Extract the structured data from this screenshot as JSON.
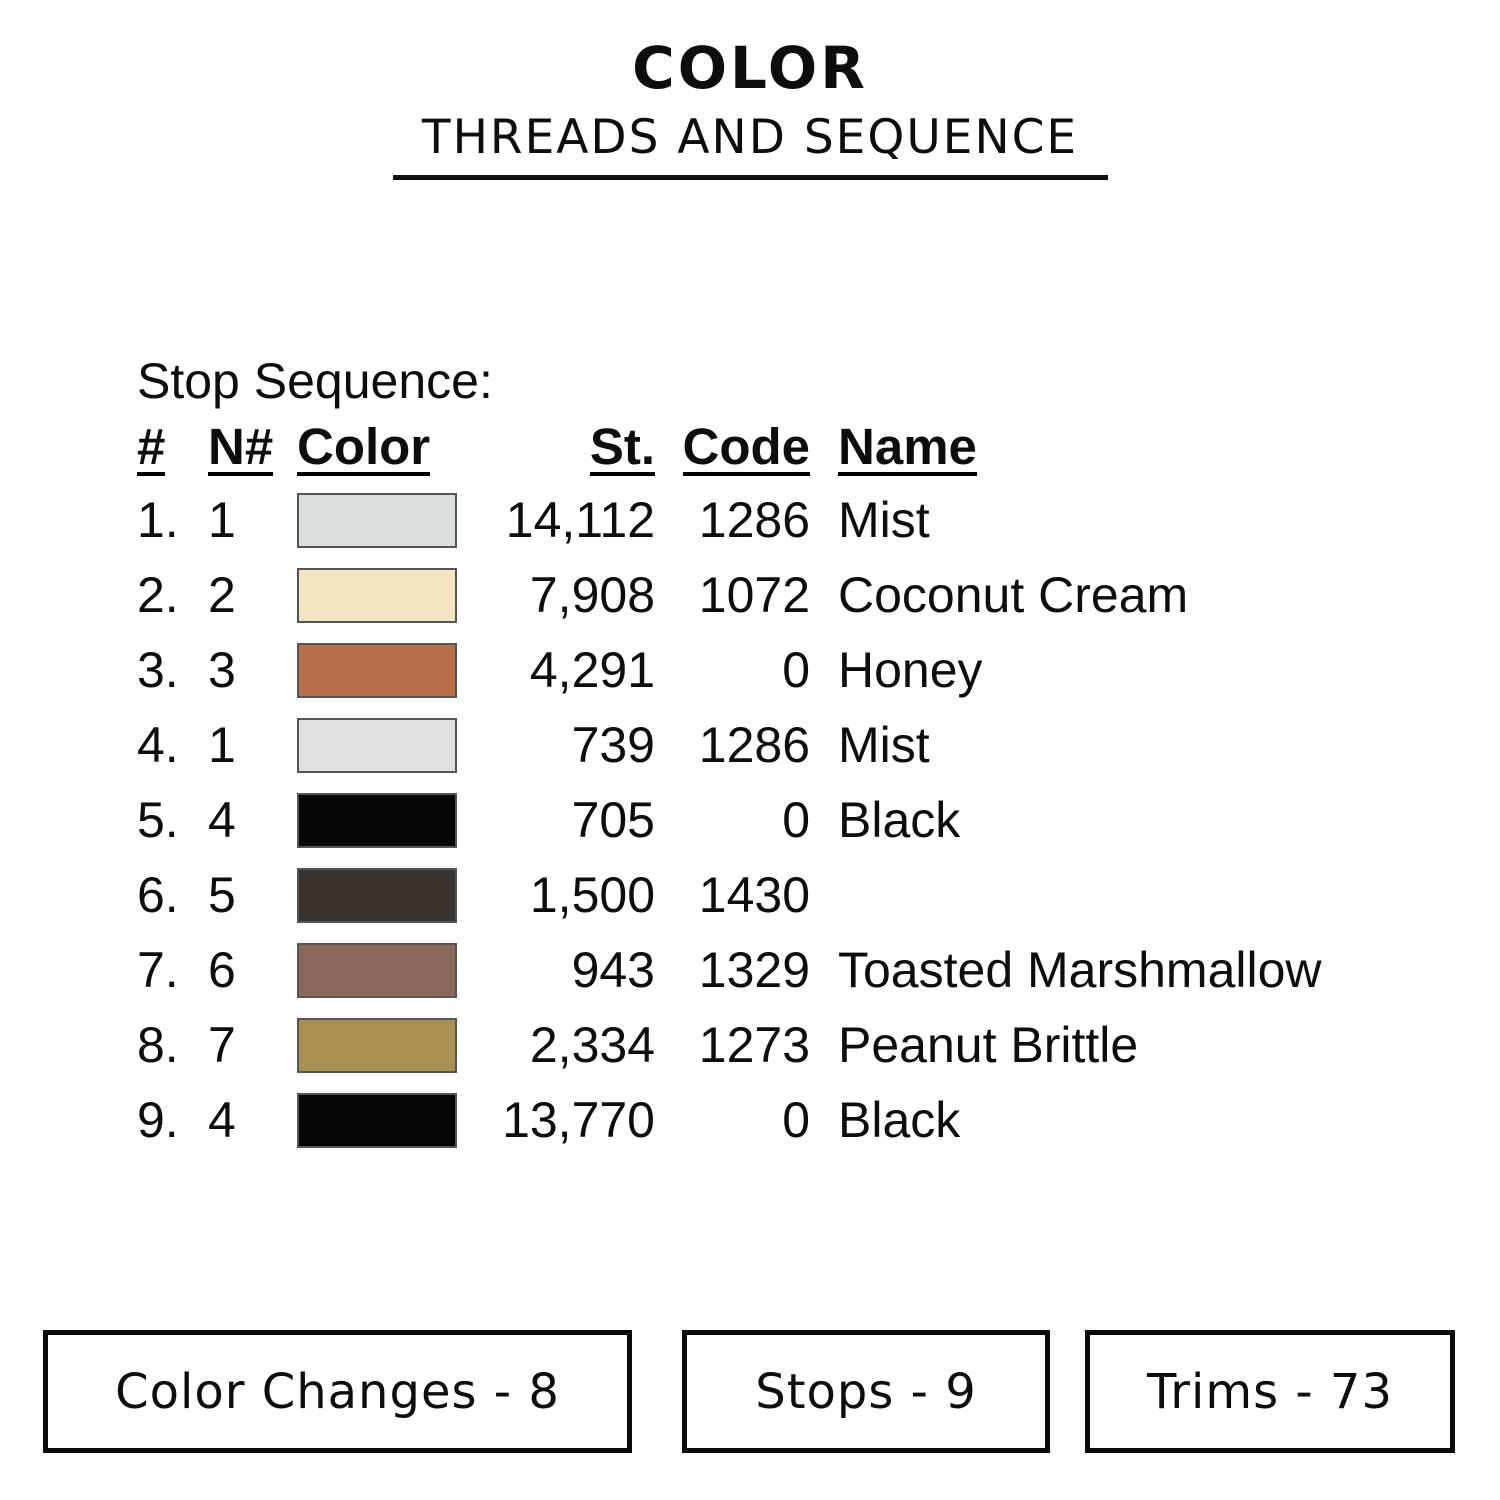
{
  "header": {
    "title": "COLOR",
    "subtitle": "THREADS AND SEQUENCE"
  },
  "section_label": "Stop Sequence:",
  "table": {
    "columns": [
      "#",
      "N#",
      "Color",
      "St.",
      "Code",
      "Name"
    ],
    "rows": [
      {
        "seq": "1.",
        "n": "1",
        "swatch": "#DBDFDB",
        "st": "14,112",
        "code": "1286",
        "name": "Mist"
      },
      {
        "seq": "2.",
        "n": "2",
        "swatch": "#F4E4C4",
        "st": "7,908",
        "code": "1072",
        "name": "Coconut Cream"
      },
      {
        "seq": "3.",
        "n": "3",
        "swatch": "#B96F4B",
        "st": "4,291",
        "code": "0",
        "name": "Honey"
      },
      {
        "seq": "4.",
        "n": "1",
        "swatch": "#DFE1DE",
        "st": "739",
        "code": "1286",
        "name": "Mist"
      },
      {
        "seq": "5.",
        "n": "4",
        "swatch": "#070503",
        "st": "705",
        "code": "0",
        "name": "Black"
      },
      {
        "seq": "6.",
        "n": "5",
        "swatch": "#3B332D",
        "st": "1,500",
        "code": "1430",
        "name": ""
      },
      {
        "seq": "7.",
        "n": "6",
        "swatch": "#8A695A",
        "st": "943",
        "code": "1329",
        "name": "Toasted Marshmallow"
      },
      {
        "seq": "8.",
        "n": "7",
        "swatch": "#AB9054",
        "st": "2,334",
        "code": "1273",
        "name": "Peanut Brittle"
      },
      {
        "seq": "9.",
        "n": "4",
        "swatch": "#060504",
        "st": "13,770",
        "code": "0",
        "name": "Black"
      }
    ],
    "swatch_border_color": "#555555"
  },
  "footer": {
    "boxes": [
      {
        "label": "Color Changes - 8"
      },
      {
        "label": "Stops - 9"
      },
      {
        "label": "Trims - 73"
      }
    ]
  },
  "colors": {
    "background": "#FFFFFF",
    "text": "#0D0D0D",
    "rule": "#111111"
  }
}
